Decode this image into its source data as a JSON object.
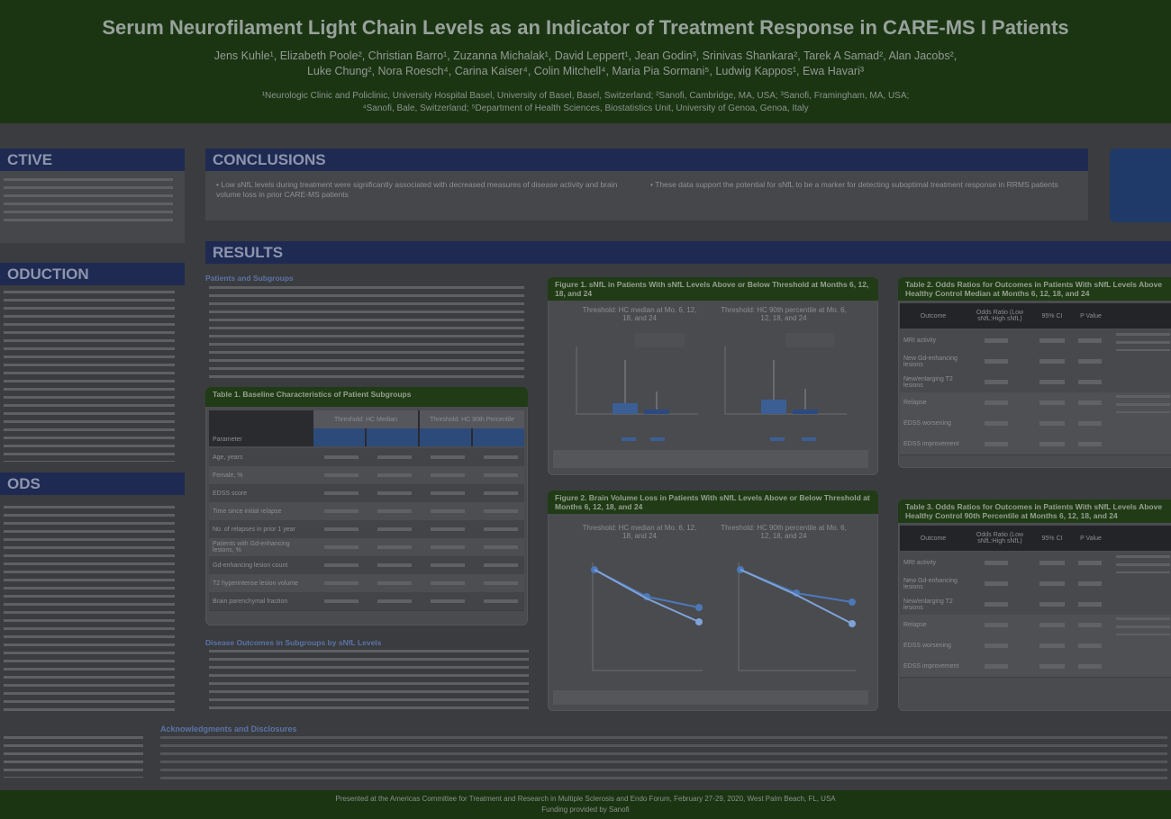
{
  "header": {
    "title": "Serum Neurofilament Light Chain Levels as an Indicator of Treatment Response in CARE-MS I Patients",
    "authors": [
      "Jens Kuhle¹, Elizabeth Poole², Christian Barro¹, Zuzanna Michalak¹, David Leppert¹, Jean Godin³, Srinivas Shankara², Tarek A Samad², Alan Jacobs²,",
      "Luke Chung², Nora Roesch⁴, Carina Kaiser⁴, Colin Mitchell⁴, Maria Pia Sormani⁵, Ludwig Kappos¹, Ewa Havari³"
    ],
    "affiliations": [
      "¹Neurologic Clinic and Policlinic, University Hospital Basel, University of Basel, Basel, Switzerland; ²Sanofi, Cambridge, MA, USA; ³Sanofi, Framingham, MA, USA;",
      "⁴Sanofi, Bale, Switzerland; ⁵Department of Health Sciences, Biostatistics Unit, University of Genoa, Genoa, Italy"
    ]
  },
  "sections": {
    "objective": "CTIVE",
    "introduction": "ODUCTION",
    "methods": "ODS",
    "conclusions": "CONCLUSIONS",
    "results": "RESULTS"
  },
  "conclusions": [
    "Low sNfL levels during treatment were significantly associated with decreased measures of disease activity and brain volume loss in prior CARE-MS patients",
    "These data support the potential for sNfL to be a marker for detecting suboptimal treatment response in RRMS patients"
  ],
  "results": {
    "subheading": "Patients and Subgroups",
    "outcomes_heading": "Disease Outcomes in Subgroups by sNfL Levels"
  },
  "table1": {
    "title": "Table 1. Baseline Characteristics of Patient Subgroups",
    "columns": [
      "Parameter",
      "Threshold: HC Median",
      "Threshold: HC 90th Percentile"
    ],
    "rows": [
      "Age, years",
      "Female, %",
      "EDSS score",
      "Time since initial relapse",
      "No. of relapses in prior 1 year",
      "Patients with Gd-enhancing lesions, %",
      "Gd-enhancing lesion count",
      "T2 hyperintense lesion volume",
      "Brain parenchymal fraction"
    ]
  },
  "figure1": {
    "title": "Figure 1. sNfL in Patients With sNfL Levels Above or Below Threshold at Months 6, 12, 18, and 24",
    "panels": [
      "Threshold: HC median at Mo. 6, 12, 18, and 24",
      "Threshold: HC 90th percentile at Mo. 6, 12, 18, and 24"
    ]
  },
  "figure2": {
    "title": "Figure 2. Brain Volume Loss in Patients With sNfL Levels Above or Below Threshold at Months 6, 12, 18, and 24",
    "panels": [
      "Threshold: HC median at Mo. 6, 12, 18, and 24",
      "Threshold: HC 90th percentile at Mo. 6, 12, 18, and 24"
    ]
  },
  "table2": {
    "title": "Table 2. Odds Ratios for Outcomes in Patients With sNfL Levels Above Healthy Control Median at Months 6, 12, 18, and 24",
    "columns": [
      "Outcome",
      "Odds Ratio (Low sNfL:High sNfL)",
      "95% CI",
      "P Value"
    ],
    "rows": [
      "MRI activity",
      "New Gd-enhancing lesions",
      "New/enlarging T2 lesions",
      "Relapse",
      "EDSS worsening",
      "EDSS improvement"
    ]
  },
  "table3": {
    "title": "Table 3. Odds Ratios for Outcomes in Patients With sNfL Levels Above Healthy Control 90th Percentile at Months 6, 12, 18, and 24",
    "columns": [
      "Outcome",
      "Odds Ratio (Low sNfL:High sNfL)",
      "95% CI",
      "P Value"
    ],
    "rows": [
      "MRI activity",
      "New Gd-enhancing lesions",
      "New/enlarging T2 lesions",
      "Relapse",
      "EDSS worsening",
      "EDSS improvement"
    ]
  },
  "acknowledgments": {
    "title": "Acknowledgments and Disclosures"
  },
  "footer": [
    "Presented at the Americas Committee for Treatment and Research in Multiple Sclerosis and Endo Forum, February 27-29, 2020, West Palm Beach, FL, USA",
    "Funding provided by Sanofi"
  ]
}
